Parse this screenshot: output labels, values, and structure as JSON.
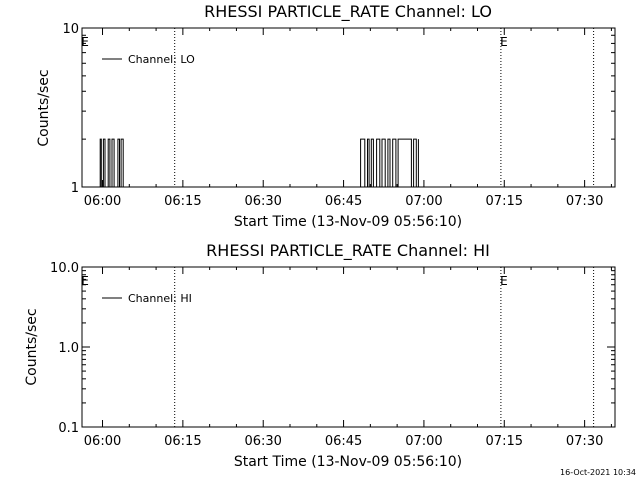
{
  "chart_data": [
    {
      "type": "line",
      "title": "RHESSI PARTICLE_RATE Channel: LO",
      "xlabel": "Start Time (13-Nov-09 05:56:10)",
      "ylabel": "Counts/sec",
      "yscale": "log",
      "ylim": [
        1,
        10
      ],
      "xlim_minutes": [
        0,
        99.5
      ],
      "ytick_labels": [
        "1",
        "10"
      ],
      "ytick_values": [
        1,
        10
      ],
      "xtick_labels": [
        "06:00",
        "06:15",
        "06:30",
        "06:45",
        "07:00",
        "07:15",
        "07:30"
      ],
      "xtick_minutes": [
        3.83,
        18.83,
        33.83,
        48.83,
        63.83,
        78.83,
        93.83
      ],
      "vlines_minutes": [
        17.3,
        78.2,
        95.5
      ],
      "markers": [
        {
          "label": "E",
          "minute": 0
        },
        {
          "label": "E",
          "minute": 78.2
        }
      ],
      "series": [
        {
          "name": "Channel: LO",
          "legend": "Channel: LO",
          "x": [
            3.4,
            3.4,
            3.6,
            3.6,
            4.0,
            4.0,
            4.3,
            4.3,
            4.9,
            4.9,
            5.2,
            5.2,
            5.6,
            5.6,
            6.0,
            6.0,
            6.7,
            6.7,
            7.0,
            7.0,
            7.3,
            7.3,
            7.7,
            7.7,
            52.0,
            52.0,
            52.8,
            52.8,
            53.3,
            53.3,
            53.6,
            53.6,
            54.0,
            54.0,
            54.4,
            54.4,
            55.0,
            55.0,
            55.6,
            55.6,
            56.0,
            56.0,
            56.6,
            56.6,
            57.1,
            57.1,
            57.5,
            57.5,
            58.0,
            58.0,
            58.6,
            58.6,
            59.0,
            59.0,
            61.5,
            61.5,
            61.9,
            61.9,
            62.4,
            62.4,
            62.8,
            62.8
          ],
          "y": [
            1,
            2,
            2,
            1,
            1,
            2,
            2,
            1,
            1,
            2,
            2,
            1,
            1,
            2,
            2,
            1,
            1,
            2,
            2,
            1,
            1,
            2,
            2,
            1,
            1,
            2,
            2,
            1,
            1,
            2,
            2,
            1,
            1,
            2,
            2,
            1,
            1,
            2,
            2,
            1,
            1,
            2,
            2,
            1,
            1,
            2,
            2,
            1,
            1,
            2,
            2,
            1,
            1,
            2,
            2,
            1,
            1,
            2,
            2,
            1,
            1,
            2
          ]
        }
      ]
    },
    {
      "type": "line",
      "title": "RHESSI PARTICLE_RATE Channel: HI",
      "xlabel": "Start Time (13-Nov-09 05:56:10)",
      "ylabel": "Counts/sec",
      "yscale": "log",
      "ylim": [
        0.1,
        10
      ],
      "xlim_minutes": [
        0,
        99.5
      ],
      "ytick_labels": [
        "0.1",
        "1.0",
        "10.0"
      ],
      "ytick_values": [
        0.1,
        1,
        10
      ],
      "xtick_labels": [
        "06:00",
        "06:15",
        "06:30",
        "06:45",
        "07:00",
        "07:15",
        "07:30"
      ],
      "xtick_minutes": [
        3.83,
        18.83,
        33.83,
        48.83,
        63.83,
        78.83,
        93.83
      ],
      "vlines_minutes": [
        17.3,
        78.2,
        95.5
      ],
      "markers": [
        {
          "label": "E",
          "minute": 0
        },
        {
          "label": "E",
          "minute": 78.2
        }
      ],
      "series": [
        {
          "name": "Channel: HI",
          "legend": "Channel: HI",
          "x": [],
          "y": []
        }
      ]
    }
  ],
  "footer": {
    "timestamp": "16-Oct-2021 10:34"
  }
}
